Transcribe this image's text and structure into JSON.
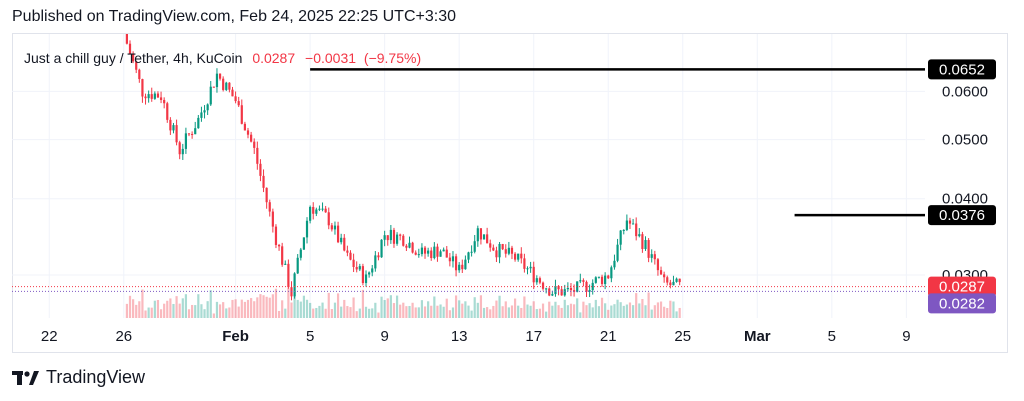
{
  "header": {
    "published": "Published on TradingView.com, Feb 24, 2025 22:25 UTC+3:30"
  },
  "symbol": {
    "name": "Just a chill guy / Tether, 4h, KuCoin",
    "last": "0.0287",
    "change": "−0.0031",
    "change_pct": "(−9.75%)"
  },
  "footer": {
    "brand": "TradingView",
    "logo_icon": "tradingview-logo-icon"
  },
  "colors": {
    "up": "#089981",
    "down": "#f23645",
    "line_purple": "#7e57c2",
    "badge_dark": "#000000",
    "grid": "#f0f3fa"
  },
  "chart_data": {
    "type": "candlestick",
    "interval": "4h",
    "y_scale": "log",
    "ylim": [
      0.0255,
      0.0745
    ],
    "y_ticks": [
      "0.0600",
      "0.0500",
      "0.0400",
      "0.0300"
    ],
    "x_ticks": [
      {
        "label": "22",
        "date": "2025-01-22"
      },
      {
        "label": "26",
        "date": "2025-01-26"
      },
      {
        "label": "Feb",
        "date": "2025-02-01"
      },
      {
        "label": "5",
        "date": "2025-02-05"
      },
      {
        "label": "9",
        "date": "2025-02-09"
      },
      {
        "label": "13",
        "date": "2025-02-13"
      },
      {
        "label": "17",
        "date": "2025-02-17"
      },
      {
        "label": "21",
        "date": "2025-02-21"
      },
      {
        "label": "25",
        "date": "2025-02-25"
      },
      {
        "label": "Mar",
        "date": "2025-03-01"
      },
      {
        "label": "5",
        "date": "2025-03-05"
      },
      {
        "label": "9",
        "date": "2025-03-09"
      }
    ],
    "xlim": [
      "2025-01-20",
      "2025-03-10"
    ],
    "price_path": [
      {
        "date": "2025-01-26",
        "close": 0.0745
      },
      {
        "date": "2025-01-27",
        "close": 0.06
      },
      {
        "date": "2025-01-28",
        "close": 0.059
      },
      {
        "date": "2025-01-29",
        "close": 0.048
      },
      {
        "date": "2025-01-30",
        "close": 0.054
      },
      {
        "date": "2025-01-31",
        "close": 0.064
      },
      {
        "date": "2025-02-01",
        "close": 0.058
      },
      {
        "date": "2025-02-02",
        "close": 0.048
      },
      {
        "date": "2025-02-03",
        "close": 0.036
      },
      {
        "date": "2025-02-04",
        "close": 0.028
      },
      {
        "date": "2025-02-05",
        "close": 0.039
      },
      {
        "date": "2025-02-06",
        "close": 0.037
      },
      {
        "date": "2025-02-07",
        "close": 0.032
      },
      {
        "date": "2025-02-08",
        "close": 0.0295
      },
      {
        "date": "2025-02-09",
        "close": 0.035
      },
      {
        "date": "2025-02-10",
        "close": 0.0345
      },
      {
        "date": "2025-02-11",
        "close": 0.0325
      },
      {
        "date": "2025-02-12",
        "close": 0.033
      },
      {
        "date": "2025-02-13",
        "close": 0.0305
      },
      {
        "date": "2025-02-14",
        "close": 0.0355
      },
      {
        "date": "2025-02-15",
        "close": 0.033
      },
      {
        "date": "2025-02-16",
        "close": 0.032
      },
      {
        "date": "2025-02-17",
        "close": 0.03
      },
      {
        "date": "2025-02-18",
        "close": 0.0282
      },
      {
        "date": "2025-02-19",
        "close": 0.0282
      },
      {
        "date": "2025-02-20",
        "close": 0.029
      },
      {
        "date": "2025-02-21",
        "close": 0.03
      },
      {
        "date": "2025-02-22",
        "close": 0.037
      },
      {
        "date": "2025-02-23",
        "close": 0.0335
      },
      {
        "date": "2025-02-24",
        "close": 0.029
      },
      {
        "date": "2025-02-24T20:00",
        "close": 0.0287
      }
    ],
    "horizontal_lines": [
      {
        "price": 0.0652,
        "label": "0.0652",
        "color": "#000000",
        "start_date": "2025-02-05"
      },
      {
        "price": 0.0376,
        "label": "0.0376",
        "color": "#000000",
        "start_date": "2025-03-03"
      }
    ],
    "price_labels": [
      {
        "label": "0.0287",
        "price": 0.0287,
        "color": "#f23645"
      },
      {
        "label": "0.0282",
        "price": 0.0282,
        "color": "#7e57c2"
      }
    ],
    "volume": {
      "shown": true
    }
  }
}
